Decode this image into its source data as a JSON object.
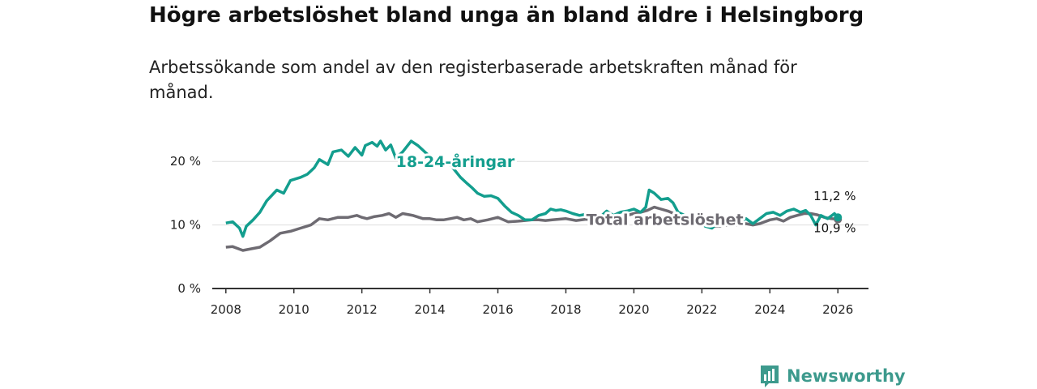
{
  "title": "Högre arbetslöshet bland unga än bland äldre i Helsingborg",
  "subtitle": "Arbetssökande som andel av den registerbaserade arbetskraften månad för månad.",
  "brand": {
    "name": "Newsworthy"
  },
  "colors": {
    "youth": "#139e8e",
    "total": "#6e6b72",
    "grid": "#dddddd",
    "axis": "#333333"
  },
  "chart_data": {
    "type": "line",
    "title": "Högre arbetslöshet bland unga än bland äldre i Helsingborg",
    "subtitle": "Arbetssökande som andel av den registerbaserade arbetskraften månad för månad.",
    "xlim": [
      2007.6,
      2026.9
    ],
    "ylim": [
      0,
      25
    ],
    "x_ticks": [
      2008,
      2010,
      2012,
      2014,
      2016,
      2018,
      2020,
      2022,
      2024,
      2026
    ],
    "x_tick_labels": [
      "2008",
      "2010",
      "2012",
      "2014",
      "2016",
      "2018",
      "2020",
      "2022",
      "2024",
      "2026"
    ],
    "y_ticks": [
      0,
      10,
      20
    ],
    "y_tick_labels": [
      "0 %",
      "10 %",
      "20 %"
    ],
    "grid": true,
    "series": [
      {
        "name": "18-24-åringar",
        "label_at": [
          2013.0,
          20.0
        ],
        "end_label": "11,2 %",
        "end_value": 11.2,
        "points": [
          [
            2008.0,
            10.3
          ],
          [
            2008.2,
            10.5
          ],
          [
            2008.4,
            9.5
          ],
          [
            2008.5,
            8.2
          ],
          [
            2008.6,
            9.8
          ],
          [
            2008.8,
            10.8
          ],
          [
            2009.0,
            12.0
          ],
          [
            2009.2,
            13.8
          ],
          [
            2009.5,
            15.5
          ],
          [
            2009.7,
            15.0
          ],
          [
            2009.9,
            17.0
          ],
          [
            2010.2,
            17.5
          ],
          [
            2010.4,
            18.0
          ],
          [
            2010.6,
            19.0
          ],
          [
            2010.75,
            20.3
          ],
          [
            2011.0,
            19.5
          ],
          [
            2011.15,
            21.5
          ],
          [
            2011.4,
            21.8
          ],
          [
            2011.6,
            20.8
          ],
          [
            2011.8,
            22.2
          ],
          [
            2012.0,
            21.0
          ],
          [
            2012.1,
            22.5
          ],
          [
            2012.3,
            23.0
          ],
          [
            2012.45,
            22.4
          ],
          [
            2012.55,
            23.2
          ],
          [
            2012.7,
            21.8
          ],
          [
            2012.85,
            22.6
          ],
          [
            2013.0,
            20.5
          ],
          [
            2013.2,
            21.5
          ],
          [
            2013.45,
            23.2
          ],
          [
            2013.65,
            22.5
          ],
          [
            2013.85,
            21.5
          ],
          [
            2014.0,
            20.8
          ],
          [
            2014.2,
            20.0
          ],
          [
            2014.4,
            19.5
          ],
          [
            2014.6,
            19.5
          ],
          [
            2014.75,
            18.5
          ],
          [
            2014.9,
            17.5
          ],
          [
            2015.1,
            16.5
          ],
          [
            2015.25,
            15.8
          ],
          [
            2015.4,
            15.0
          ],
          [
            2015.6,
            14.5
          ],
          [
            2015.8,
            14.6
          ],
          [
            2016.0,
            14.2
          ],
          [
            2016.2,
            13.0
          ],
          [
            2016.4,
            12.0
          ],
          [
            2016.6,
            11.5
          ],
          [
            2016.8,
            10.8
          ],
          [
            2017.0,
            10.8
          ],
          [
            2017.2,
            11.5
          ],
          [
            2017.4,
            11.8
          ],
          [
            2017.55,
            12.5
          ],
          [
            2017.7,
            12.3
          ],
          [
            2017.85,
            12.4
          ],
          [
            2018.0,
            12.2
          ],
          [
            2018.2,
            11.8
          ],
          [
            2018.4,
            11.5
          ],
          [
            2018.7,
            11.8
          ],
          [
            2019.0,
            11.2
          ],
          [
            2019.2,
            12.2
          ],
          [
            2019.4,
            11.5
          ],
          [
            2019.6,
            12.0
          ],
          [
            2019.8,
            12.2
          ],
          [
            2020.0,
            12.5
          ],
          [
            2020.2,
            12.0
          ],
          [
            2020.35,
            12.8
          ],
          [
            2020.45,
            15.5
          ],
          [
            2020.6,
            15.0
          ],
          [
            2020.8,
            14.0
          ],
          [
            2021.0,
            14.2
          ],
          [
            2021.15,
            13.5
          ],
          [
            2021.3,
            12.0
          ],
          [
            2021.5,
            11.5
          ],
          [
            2021.7,
            11.0
          ],
          [
            2021.9,
            10.5
          ],
          [
            2022.1,
            9.8
          ],
          [
            2022.3,
            9.5
          ],
          [
            2022.5,
            10.5
          ],
          [
            2022.7,
            11.0
          ],
          [
            2022.9,
            11.2
          ],
          [
            2023.1,
            10.5
          ],
          [
            2023.3,
            11.0
          ],
          [
            2023.5,
            10.2
          ],
          [
            2023.7,
            11.0
          ],
          [
            2023.9,
            11.8
          ],
          [
            2024.1,
            12.0
          ],
          [
            2024.3,
            11.5
          ],
          [
            2024.5,
            12.2
          ],
          [
            2024.7,
            12.5
          ],
          [
            2024.9,
            12.0
          ],
          [
            2025.05,
            12.3
          ],
          [
            2025.2,
            11.5
          ],
          [
            2025.35,
            10.0
          ],
          [
            2025.5,
            11.5
          ],
          [
            2025.7,
            11.0
          ],
          [
            2025.9,
            11.8
          ],
          [
            2026.0,
            11.2
          ]
        ]
      },
      {
        "name": "Total arbetslöshet",
        "label_at": [
          2018.6,
          10.9
        ],
        "end_label": "10,9 %",
        "end_value": 10.9,
        "points": [
          [
            2008.0,
            6.5
          ],
          [
            2008.2,
            6.6
          ],
          [
            2008.5,
            6.0
          ],
          [
            2008.7,
            6.2
          ],
          [
            2009.0,
            6.5
          ],
          [
            2009.3,
            7.5
          ],
          [
            2009.6,
            8.7
          ],
          [
            2009.9,
            9.0
          ],
          [
            2010.2,
            9.5
          ],
          [
            2010.5,
            10.0
          ],
          [
            2010.75,
            11.0
          ],
          [
            2011.0,
            10.8
          ],
          [
            2011.3,
            11.2
          ],
          [
            2011.6,
            11.2
          ],
          [
            2011.85,
            11.5
          ],
          [
            2012.0,
            11.2
          ],
          [
            2012.15,
            11.0
          ],
          [
            2012.35,
            11.3
          ],
          [
            2012.6,
            11.5
          ],
          [
            2012.8,
            11.8
          ],
          [
            2013.0,
            11.2
          ],
          [
            2013.2,
            11.8
          ],
          [
            2013.5,
            11.5
          ],
          [
            2013.8,
            11.0
          ],
          [
            2014.0,
            11.0
          ],
          [
            2014.2,
            10.8
          ],
          [
            2014.4,
            10.8
          ],
          [
            2014.6,
            11.0
          ],
          [
            2014.8,
            11.2
          ],
          [
            2015.0,
            10.8
          ],
          [
            2015.2,
            11.0
          ],
          [
            2015.4,
            10.5
          ],
          [
            2015.7,
            10.8
          ],
          [
            2016.0,
            11.2
          ],
          [
            2016.3,
            10.5
          ],
          [
            2016.6,
            10.6
          ],
          [
            2016.8,
            10.7
          ],
          [
            2017.0,
            10.8
          ],
          [
            2017.2,
            10.8
          ],
          [
            2017.4,
            10.7
          ],
          [
            2017.6,
            10.8
          ],
          [
            2017.8,
            10.9
          ],
          [
            2018.0,
            11.0
          ],
          [
            2018.3,
            10.7
          ],
          [
            2018.6,
            10.9
          ],
          [
            2018.9,
            10.6
          ],
          [
            2019.2,
            11.0
          ],
          [
            2019.5,
            11.2
          ],
          [
            2019.8,
            11.5
          ],
          [
            2020.0,
            11.8
          ],
          [
            2020.2,
            12.0
          ],
          [
            2020.4,
            12.3
          ],
          [
            2020.6,
            12.8
          ],
          [
            2020.8,
            12.5
          ],
          [
            2021.0,
            12.2
          ],
          [
            2021.3,
            11.5
          ],
          [
            2021.6,
            10.8
          ],
          [
            2021.9,
            10.2
          ],
          [
            2022.2,
            9.8
          ],
          [
            2022.5,
            9.8
          ],
          [
            2022.8,
            10.0
          ],
          [
            2023.0,
            10.0
          ],
          [
            2023.3,
            10.2
          ],
          [
            2023.5,
            10.0
          ],
          [
            2023.7,
            10.2
          ],
          [
            2024.0,
            10.8
          ],
          [
            2024.2,
            11.0
          ],
          [
            2024.4,
            10.6
          ],
          [
            2024.6,
            11.2
          ],
          [
            2024.8,
            11.5
          ],
          [
            2025.0,
            11.8
          ],
          [
            2025.2,
            11.8
          ],
          [
            2025.4,
            11.6
          ],
          [
            2025.6,
            11.2
          ],
          [
            2025.8,
            11.0
          ],
          [
            2026.0,
            10.9
          ]
        ]
      }
    ]
  }
}
